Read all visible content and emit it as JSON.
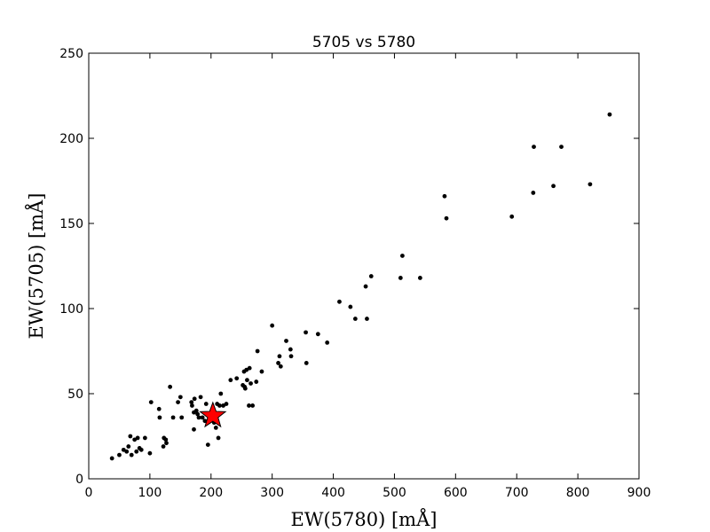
{
  "chart_data": {
    "type": "scatter",
    "title": "5705 vs 5780",
    "xlabel": "EW(5780) [mÅ]",
    "ylabel": "EW(5705) [mÅ]",
    "xlim": [
      0,
      900
    ],
    "ylim": [
      0,
      250
    ],
    "xticks": [
      0,
      100,
      200,
      300,
      400,
      500,
      600,
      700,
      800,
      900
    ],
    "yticks": [
      0,
      50,
      100,
      150,
      200,
      250
    ],
    "grid": false,
    "series": [
      {
        "marker": "circle",
        "color": "#000000",
        "points": [
          [
            38,
            12
          ],
          [
            50,
            14
          ],
          [
            57,
            17
          ],
          [
            62,
            16
          ],
          [
            65,
            19
          ],
          [
            68,
            25
          ],
          [
            70,
            14
          ],
          [
            75,
            23
          ],
          [
            78,
            16
          ],
          [
            80,
            24
          ],
          [
            83,
            18
          ],
          [
            86,
            17
          ],
          [
            92,
            24
          ],
          [
            100,
            15
          ],
          [
            102,
            45
          ],
          [
            115,
            41
          ],
          [
            116,
            36
          ],
          [
            122,
            19
          ],
          [
            123,
            24
          ],
          [
            126,
            23
          ],
          [
            127,
            21
          ],
          [
            133,
            54
          ],
          [
            138,
            36
          ],
          [
            146,
            45
          ],
          [
            150,
            48
          ],
          [
            152,
            36
          ],
          [
            168,
            45
          ],
          [
            169,
            43
          ],
          [
            172,
            29
          ],
          [
            172,
            39
          ],
          [
            173,
            47
          ],
          [
            176,
            40
          ],
          [
            178,
            38
          ],
          [
            180,
            36
          ],
          [
            183,
            48
          ],
          [
            186,
            36
          ],
          [
            190,
            34
          ],
          [
            192,
            44
          ],
          [
            195,
            20
          ],
          [
            198,
            38
          ],
          [
            200,
            35
          ],
          [
            203,
            37
          ],
          [
            205,
            33
          ],
          [
            208,
            30
          ],
          [
            210,
            44
          ],
          [
            212,
            24
          ],
          [
            214,
            43
          ],
          [
            216,
            50
          ],
          [
            220,
            43
          ],
          [
            225,
            44
          ],
          [
            232,
            58
          ],
          [
            242,
            59
          ],
          [
            252,
            55
          ],
          [
            254,
            63
          ],
          [
            255,
            54
          ],
          [
            256,
            53
          ],
          [
            258,
            64
          ],
          [
            259,
            58
          ],
          [
            262,
            43
          ],
          [
            263,
            65
          ],
          [
            265,
            56
          ],
          [
            268,
            43
          ],
          [
            274,
            57
          ],
          [
            276,
            75
          ],
          [
            283,
            63
          ],
          [
            300,
            90
          ],
          [
            310,
            68
          ],
          [
            312,
            72
          ],
          [
            314,
            66
          ],
          [
            323,
            81
          ],
          [
            330,
            76
          ],
          [
            331,
            72
          ],
          [
            355,
            86
          ],
          [
            356,
            68
          ],
          [
            375,
            85
          ],
          [
            390,
            80
          ],
          [
            410,
            104
          ],
          [
            428,
            101
          ],
          [
            436,
            94
          ],
          [
            453,
            113
          ],
          [
            455,
            94
          ],
          [
            462,
            119
          ],
          [
            510,
            118
          ],
          [
            513,
            131
          ],
          [
            542,
            118
          ],
          [
            582,
            166
          ],
          [
            585,
            153
          ],
          [
            692,
            154
          ],
          [
            727,
            168
          ],
          [
            728,
            195
          ],
          [
            760,
            172
          ],
          [
            773,
            195
          ],
          [
            820,
            173
          ],
          [
            852,
            214
          ]
        ]
      },
      {
        "marker": "star",
        "color": "#ff0000",
        "points": [
          [
            203,
            37
          ]
        ]
      }
    ]
  }
}
